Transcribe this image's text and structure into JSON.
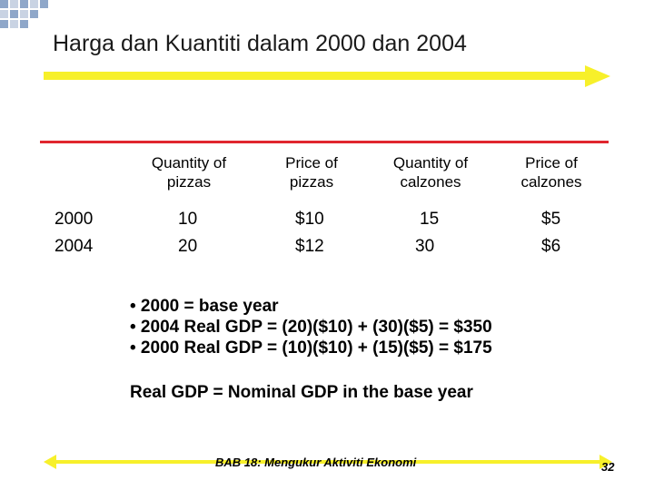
{
  "colors": {
    "yellow": "#f7f02a",
    "red": "#e0262e",
    "blue_square": "#8fa7c9"
  },
  "title": "Harga dan Kuantiti dalam 2000 dan 2004",
  "table": {
    "headers": [
      "Quantity of\npizzas",
      "Price of\npizzas",
      "Quantity of\ncalzones",
      "Price of\ncalzones"
    ],
    "rows": [
      {
        "year": "2000",
        "cells": [
          "10",
          "$10",
          "15",
          "$5"
        ]
      },
      {
        "year": "2004",
        "cells": [
          "20",
          "$12",
          "30",
          "$6"
        ]
      }
    ]
  },
  "bullets": [
    "• 2000 = base year",
    "• 2004 Real GDP = (20)($10) + (30)($5) = $350",
    "• 2000 Real GDP = (10)($10) + (15)($5) = $175"
  ],
  "statement": "Real GDP = Nominal GDP in the base year",
  "footer": {
    "text": "BAB 18: Mengukur Aktiviti Ekonomi",
    "page": "32"
  }
}
